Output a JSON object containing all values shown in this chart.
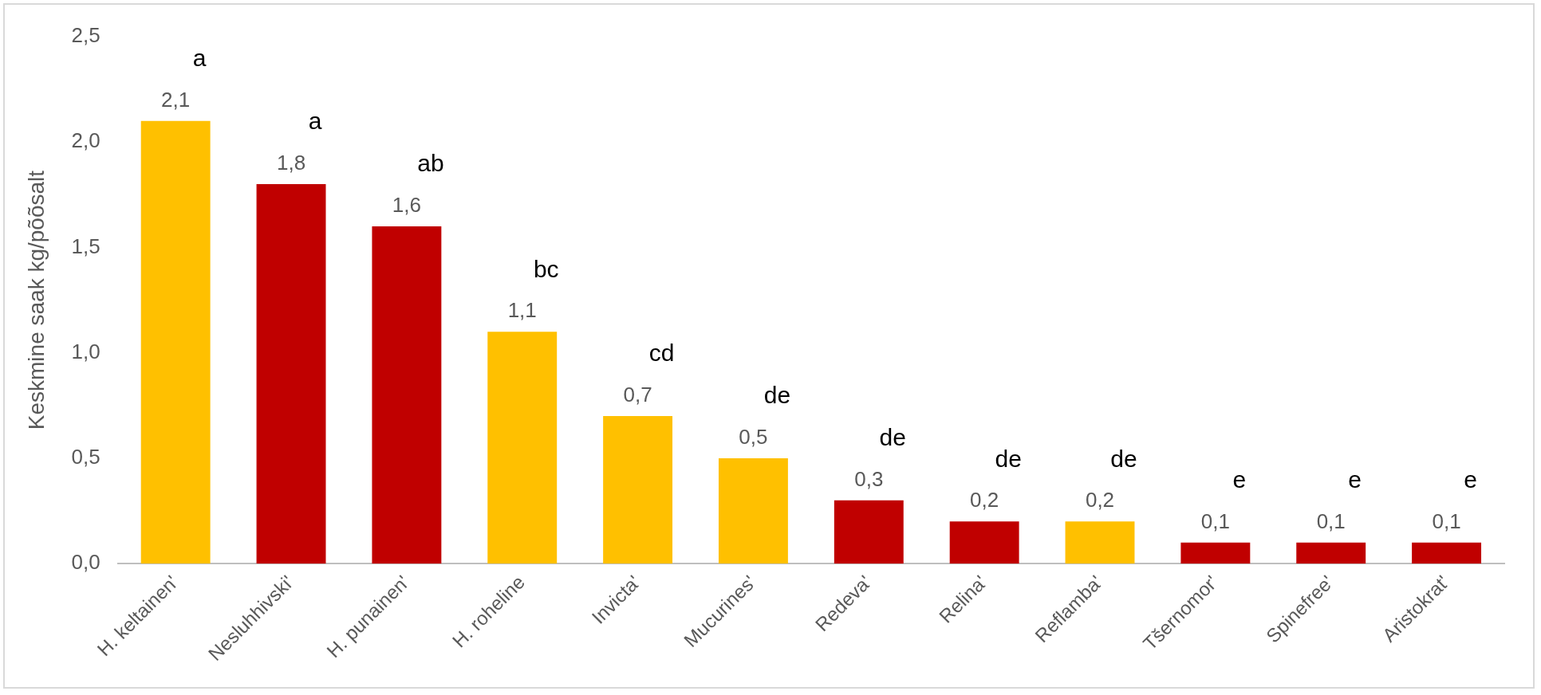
{
  "chart_data": {
    "type": "bar",
    "ylabel": "Keskmine saak kg/põõsalt",
    "categories": [
      "H. keltainen'",
      "Nesluhhivski'",
      "H. punainen'",
      "H. roheline",
      "Invicta'",
      "Mucurines'",
      "Redeva'",
      "Relina'",
      "Reflamba'",
      "Tšernomor'",
      "Spinefree'",
      "Aristokrat'"
    ],
    "values": [
      2.1,
      1.8,
      1.6,
      1.1,
      0.7,
      0.5,
      0.3,
      0.2,
      0.2,
      0.1,
      0.1,
      0.1
    ],
    "colors": [
      "#ffc000",
      "#c00000",
      "#c00000",
      "#ffc000",
      "#ffc000",
      "#ffc000",
      "#c00000",
      "#c00000",
      "#ffc000",
      "#c00000",
      "#c00000",
      "#c00000"
    ],
    "value_labels": [
      "2,1",
      "1,8",
      "1,6",
      "1,1",
      "0,7",
      "0,5",
      "0,3",
      "0,2",
      "0,2",
      "0,1",
      "0,1",
      "0,1"
    ],
    "ylim": [
      0,
      2.5
    ],
    "yticks": [
      {
        "value": 0,
        "label": "0,0"
      },
      {
        "value": 0.5,
        "label": "0,5"
      },
      {
        "value": 1,
        "label": "1,0"
      },
      {
        "value": 1.5,
        "label": "1,5"
      },
      {
        "value": 2,
        "label": "2,0"
      },
      {
        "value": 2.5,
        "label": "2,5"
      }
    ],
    "grid": false,
    "legend": false,
    "annotations": [
      "a",
      "a",
      "ab",
      "bc",
      "cd",
      "de",
      "de",
      "de",
      "de",
      "e",
      "e",
      "e"
    ]
  }
}
